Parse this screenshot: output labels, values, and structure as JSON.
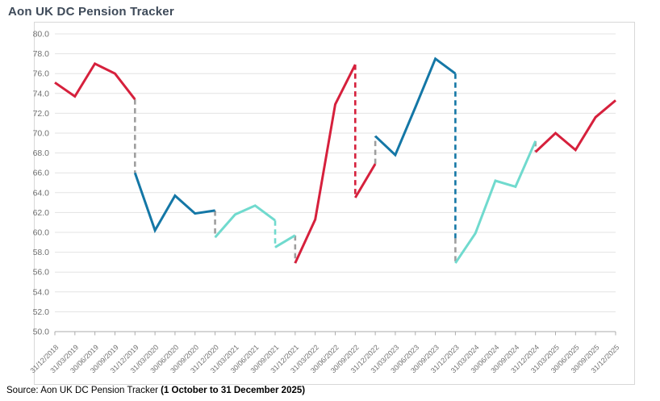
{
  "title": "Aon UK DC Pension Tracker",
  "source": {
    "prefix": "Source: Aon UK DC Pension Tracker ",
    "bold": "(1 October to 31 December 2025)"
  },
  "palette": {
    "red": "#d6203c",
    "blue": "#1477a6",
    "teal": "#70dace",
    "gray": "#9e9e9e",
    "grid": "#e3e3e3",
    "axis": "#ababab",
    "tick_text": "#707070",
    "title_text": "#3e4a59",
    "border": "#d8d8d8"
  },
  "chart_data": {
    "type": "line",
    "title": "Aon UK DC Pension Tracker",
    "xlabel": "",
    "ylabel": "",
    "ylim": [
      50.0,
      80.0
    ],
    "ytick_step": 2.0,
    "ytick_labels": [
      "80.0",
      "78.0",
      "76.0",
      "74.0",
      "72.0",
      "70.0",
      "68.0",
      "66.0",
      "64.0",
      "62.0",
      "60.0",
      "58.0",
      "56.0",
      "54.0",
      "52.0",
      "50.0"
    ],
    "grid": true,
    "legend": "none",
    "x_labels": [
      "31/12/2018",
      "31/03/2019",
      "30/06/2019",
      "30/09/2019",
      "31/12/2019",
      "31/03/2020",
      "30/06/2020",
      "30/09/2020",
      "31/12/2020",
      "31/03/2021",
      "30/06/2021",
      "30/09/2021",
      "31/12/2021",
      "31/03/2022",
      "30/06/2022",
      "30/09/2022",
      "31/12/2022",
      "31/03/2023",
      "30/06/2023",
      "30/09/2023",
      "31/12/2023",
      "31/03/2024",
      "30/06/2024",
      "30/09/2024",
      "31/12/2024",
      "31/03/2025",
      "30/06/2025",
      "30/09/2025",
      "31/12/2025"
    ],
    "segments": [
      {
        "name": "red-2019",
        "color": "red",
        "points": [
          [
            0,
            75.1
          ],
          [
            1,
            73.7
          ],
          [
            2,
            77.0
          ],
          [
            3,
            76.0
          ],
          [
            4,
            73.4
          ]
        ]
      },
      {
        "name": "blue-2020",
        "color": "blue",
        "points": [
          [
            4,
            66.0
          ],
          [
            5,
            60.2
          ],
          [
            6,
            63.7
          ],
          [
            7,
            61.9
          ],
          [
            8,
            62.2
          ]
        ]
      },
      {
        "name": "teal-2021a",
        "color": "teal",
        "points": [
          [
            8,
            59.5
          ],
          [
            9,
            61.8
          ],
          [
            10,
            62.7
          ],
          [
            11,
            61.2
          ]
        ]
      },
      {
        "name": "teal-2021b",
        "color": "teal",
        "points": [
          [
            11,
            58.5
          ],
          [
            12,
            59.7
          ]
        ]
      },
      {
        "name": "red-2022a",
        "color": "red",
        "points": [
          [
            12,
            56.9
          ],
          [
            13,
            61.3
          ],
          [
            14,
            72.9
          ],
          [
            15,
            76.9
          ]
        ]
      },
      {
        "name": "red-2022b",
        "color": "red",
        "points": [
          [
            15,
            63.5
          ],
          [
            16,
            66.9
          ]
        ]
      },
      {
        "name": "blue-2023",
        "color": "blue",
        "points": [
          [
            16,
            69.7
          ],
          [
            17,
            67.8
          ],
          [
            18,
            72.6
          ],
          [
            19,
            77.5
          ],
          [
            20,
            76.0
          ]
        ]
      },
      {
        "name": "teal-2024",
        "color": "teal",
        "points": [
          [
            20,
            56.9
          ],
          [
            21,
            59.9
          ],
          [
            22,
            65.2
          ],
          [
            23,
            64.6
          ],
          [
            24,
            69.2
          ]
        ]
      },
      {
        "name": "red-2025",
        "color": "red",
        "points": [
          [
            24,
            68.1
          ],
          [
            25,
            70.0
          ],
          [
            26,
            68.3
          ],
          [
            27,
            71.6
          ],
          [
            28,
            73.3
          ]
        ]
      }
    ],
    "connectors": [
      {
        "x": 4,
        "from": 73.4,
        "to": 66.0,
        "color": "gray"
      },
      {
        "x": 8,
        "from": 62.2,
        "to": 59.5,
        "color": "gray"
      },
      {
        "x": 11,
        "from": 61.2,
        "to": 58.5,
        "color": "teal"
      },
      {
        "x": 12,
        "from": 59.7,
        "to": 56.9,
        "color": "gray"
      },
      {
        "x": 15,
        "from": 76.9,
        "to": 63.5,
        "color": "red"
      },
      {
        "x": 16,
        "from": 66.9,
        "to": 69.7,
        "color": "gray"
      },
      {
        "x": 20,
        "from": 76.0,
        "to": 59.4,
        "color": "blue"
      },
      {
        "x": 20,
        "from": 59.4,
        "to": 56.9,
        "color": "gray"
      },
      {
        "x": 24,
        "from": 69.2,
        "to": 68.1,
        "color": "gray"
      }
    ]
  }
}
